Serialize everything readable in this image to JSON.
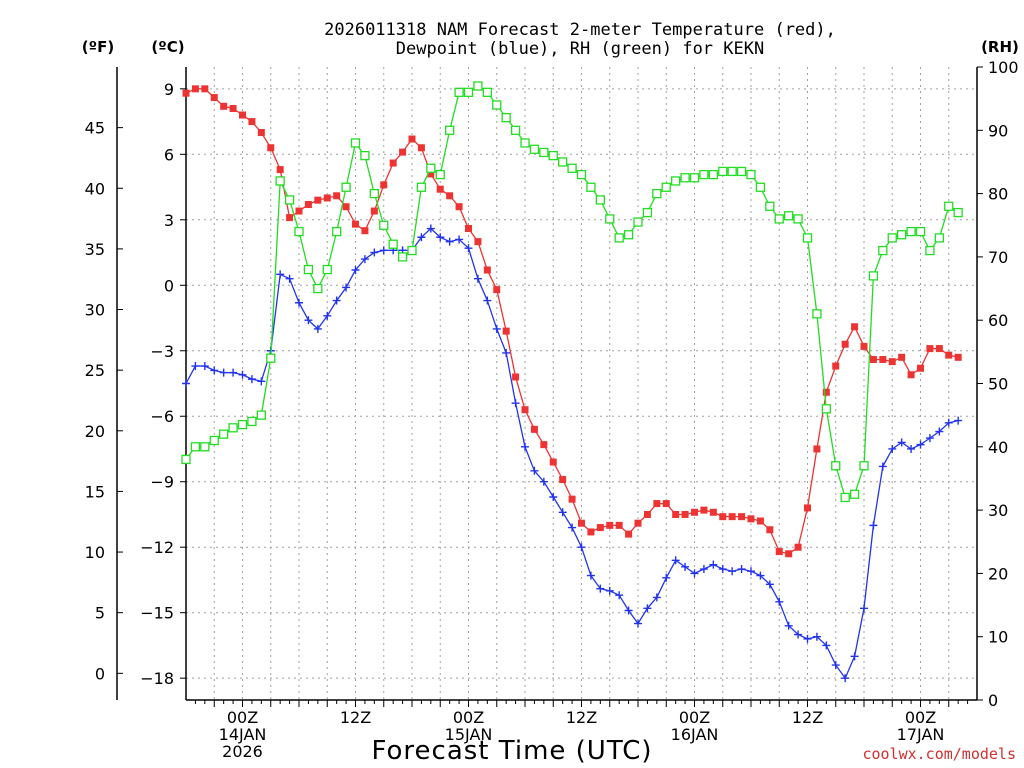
{
  "chart_data": {
    "type": "line",
    "title_lines": [
      "2026011318 NAM Forecast 2-meter Temperature (red),",
      "Dewpoint (blue), RH (green) for KEKN"
    ],
    "xlabel": "Forecast Time (UTC)",
    "credit": "coolwx.com/models",
    "unit_labels": {
      "fahrenheit": "(ºF)",
      "celsius": "(ºC)",
      "rh": "(RH)"
    },
    "x_range_hours": [
      -6,
      78
    ],
    "celsius_range": [
      -19,
      10
    ],
    "rh_range": [
      0,
      100
    ],
    "celsius_ticks": [
      "9",
      "6",
      "3",
      "0",
      "−3",
      "−6",
      "−9",
      "−12",
      "−15",
      "−18"
    ],
    "celsius_tick_values": [
      9,
      6,
      3,
      0,
      -3,
      -6,
      -9,
      -12,
      -15,
      -18
    ],
    "fahrenheit_ticks": [
      "45",
      "40",
      "35",
      "30",
      "25",
      "20",
      "15",
      "10",
      "5",
      "0"
    ],
    "fahrenheit_tick_values": [
      45,
      40,
      35,
      30,
      25,
      20,
      15,
      10,
      5,
      0
    ],
    "rh_ticks": [
      "100",
      "90",
      "80",
      "70",
      "60",
      "50",
      "40",
      "30",
      "20",
      "10",
      "0"
    ],
    "rh_tick_values": [
      100,
      90,
      80,
      70,
      60,
      50,
      40,
      30,
      20,
      10,
      0
    ],
    "x_ticks": [
      {
        "hour": 0,
        "lines": [
          "00Z",
          "14JAN",
          "2026"
        ]
      },
      {
        "hour": 12,
        "lines": [
          "12Z"
        ]
      },
      {
        "hour": 24,
        "lines": [
          "00Z",
          "15JAN"
        ]
      },
      {
        "hour": 36,
        "lines": [
          "12Z"
        ]
      },
      {
        "hour": 48,
        "lines": [
          "00Z",
          "16JAN"
        ]
      },
      {
        "hour": 60,
        "lines": [
          "12Z"
        ]
      },
      {
        "hour": 72,
        "lines": [
          "00Z",
          "17JAN"
        ]
      }
    ],
    "series": [
      {
        "name": "2-meter Temperature",
        "unit": "C",
        "color": "#ee3333",
        "marker": "filled-square",
        "start_hour": -6,
        "step_hours": 1,
        "values": [
          8.8,
          9.0,
          9.0,
          8.6,
          8.2,
          8.1,
          7.8,
          7.5,
          7.0,
          6.3,
          5.3,
          3.1,
          3.4,
          3.7,
          3.9,
          4.0,
          4.1,
          3.6,
          2.8,
          2.5,
          3.4,
          4.6,
          5.6,
          6.1,
          6.7,
          6.3,
          5.1,
          4.4,
          4.1,
          3.6,
          2.6,
          2.0,
          0.7,
          -0.2,
          -2.1,
          -4.2,
          -5.7,
          -6.6,
          -7.3,
          -8.1,
          -8.9,
          -9.8,
          -10.9,
          -11.3,
          -11.1,
          -11.0,
          -11.0,
          -11.4,
          -10.9,
          -10.5,
          -10.0,
          -10.0,
          -10.5,
          -10.5,
          -10.4,
          -10.3,
          -10.4,
          -10.6,
          -10.6,
          -10.6,
          -10.7,
          -10.8,
          -11.2,
          -12.2,
          -12.3,
          -12.0,
          -10.2,
          -7.5,
          -4.9,
          -3.7,
          -2.7,
          -1.9,
          -2.8,
          -3.4,
          -3.4,
          -3.5,
          -3.3,
          -4.1,
          -3.8,
          -2.9,
          -2.9,
          -3.2,
          -3.3
        ]
      },
      {
        "name": "Dewpoint",
        "unit": "C",
        "color": "#2233ee",
        "marker": "plus",
        "start_hour": -6,
        "step_hours": 1,
        "values": [
          -4.5,
          -3.7,
          -3.7,
          -3.9,
          -4.0,
          -4.0,
          -4.1,
          -4.3,
          -4.4,
          -3.0,
          0.5,
          0.3,
          -0.8,
          -1.6,
          -2.0,
          -1.4,
          -0.7,
          -0.1,
          0.7,
          1.2,
          1.5,
          1.6,
          1.6,
          1.6,
          1.6,
          2.2,
          2.6,
          2.2,
          2.0,
          2.1,
          1.7,
          0.3,
          -0.7,
          -2.0,
          -3.1,
          -5.4,
          -7.4,
          -8.5,
          -9.0,
          -9.7,
          -10.4,
          -11.1,
          -12.0,
          -13.3,
          -13.9,
          -14.0,
          -14.2,
          -14.9,
          -15.5,
          -14.8,
          -14.3,
          -13.4,
          -12.6,
          -12.9,
          -13.2,
          -13.0,
          -12.8,
          -13.0,
          -13.1,
          -13.0,
          -13.1,
          -13.3,
          -13.7,
          -14.5,
          -15.6,
          -16.0,
          -16.2,
          -16.1,
          -16.5,
          -17.4,
          -18.0,
          -17.0,
          -14.8,
          -11.0,
          -8.3,
          -7.5,
          -7.2,
          -7.5,
          -7.3,
          -7.0,
          -6.7,
          -6.3,
          -6.2
        ]
      },
      {
        "name": "Relative Humidity",
        "unit": "%",
        "color": "#22dd22",
        "marker": "hollow-square",
        "start_hour": -6,
        "step_hours": 1,
        "values": [
          38,
          40,
          40,
          41,
          42,
          43,
          43.5,
          44,
          45,
          54,
          82,
          79,
          74,
          68,
          65,
          68,
          74,
          81,
          88,
          86,
          80,
          75,
          72,
          70,
          71,
          81,
          84,
          83,
          90,
          96,
          96,
          97,
          96,
          94,
          92,
          90,
          88,
          87,
          86.5,
          86,
          85,
          84,
          83,
          81,
          79,
          76,
          73,
          73.5,
          75.5,
          77,
          80,
          81,
          82,
          82.5,
          82.5,
          83,
          83,
          83.5,
          83.5,
          83.5,
          83,
          81,
          78,
          76,
          76.5,
          76,
          73,
          61,
          46,
          37,
          32,
          32.5,
          37,
          67,
          71,
          73,
          73.5,
          74,
          74,
          71,
          73,
          78,
          77
        ]
      }
    ]
  }
}
